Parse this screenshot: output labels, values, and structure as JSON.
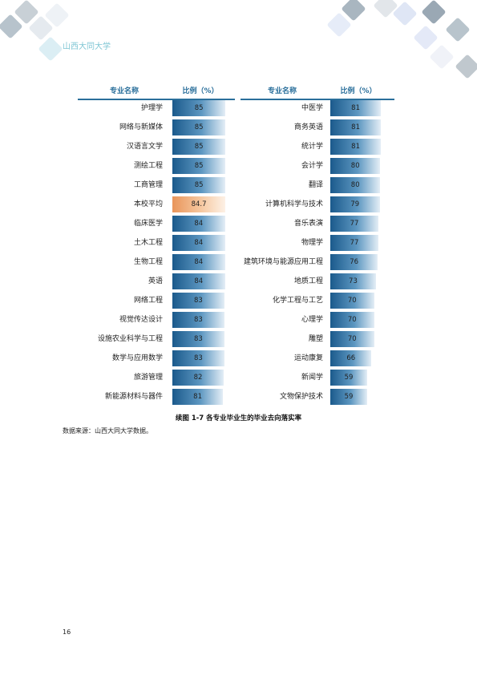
{
  "header": {
    "school": "山西大同大学"
  },
  "table": {
    "columns": [
      "专业名称",
      "比例（%）"
    ],
    "left": [
      {
        "name": "护理学",
        "value": 85
      },
      {
        "name": "网络与新媒体",
        "value": 85
      },
      {
        "name": "汉语言文学",
        "value": 85
      },
      {
        "name": "测绘工程",
        "value": 85
      },
      {
        "name": "工商管理",
        "value": 85
      },
      {
        "name": "本校平均",
        "value": 84.7
      },
      {
        "name": "临床医学",
        "value": 84
      },
      {
        "name": "土木工程",
        "value": 84
      },
      {
        "name": "生物工程",
        "value": 84
      },
      {
        "name": "英语",
        "value": 84
      },
      {
        "name": "网络工程",
        "value": 83
      },
      {
        "name": "视觉传达设计",
        "value": 83
      },
      {
        "name": "设施农业科学与工程",
        "value": 83
      },
      {
        "name": "数学与应用数学",
        "value": 83
      },
      {
        "name": "旅游管理",
        "value": 82
      },
      {
        "name": "新能源材料与器件",
        "value": 81
      }
    ],
    "right": [
      {
        "name": "中医学",
        "value": 81
      },
      {
        "name": "商务英语",
        "value": 81
      },
      {
        "name": "统计学",
        "value": 81
      },
      {
        "name": "会计学",
        "value": 80
      },
      {
        "name": "翻译",
        "value": 80
      },
      {
        "name": "计算机科学与技术",
        "value": 79
      },
      {
        "name": "音乐表演",
        "value": 77
      },
      {
        "name": "物理学",
        "value": 77
      },
      {
        "name": "建筑环境与能源应用工程",
        "value": 76
      },
      {
        "name": "地质工程",
        "value": 73
      },
      {
        "name": "化学工程与工艺",
        "value": 70
      },
      {
        "name": "心理学",
        "value": 70
      },
      {
        "name": "雕塑",
        "value": 70
      },
      {
        "name": "运动康复",
        "value": 66
      },
      {
        "name": "新闻学",
        "value": 59
      },
      {
        "name": "文物保护技术",
        "value": 59
      }
    ],
    "highlight": "本校平均"
  },
  "caption": "续图 1-7 各专业毕业生的毕业去向落实率",
  "source": "数据来源：山西大同大学数据。",
  "page_number": "16"
}
